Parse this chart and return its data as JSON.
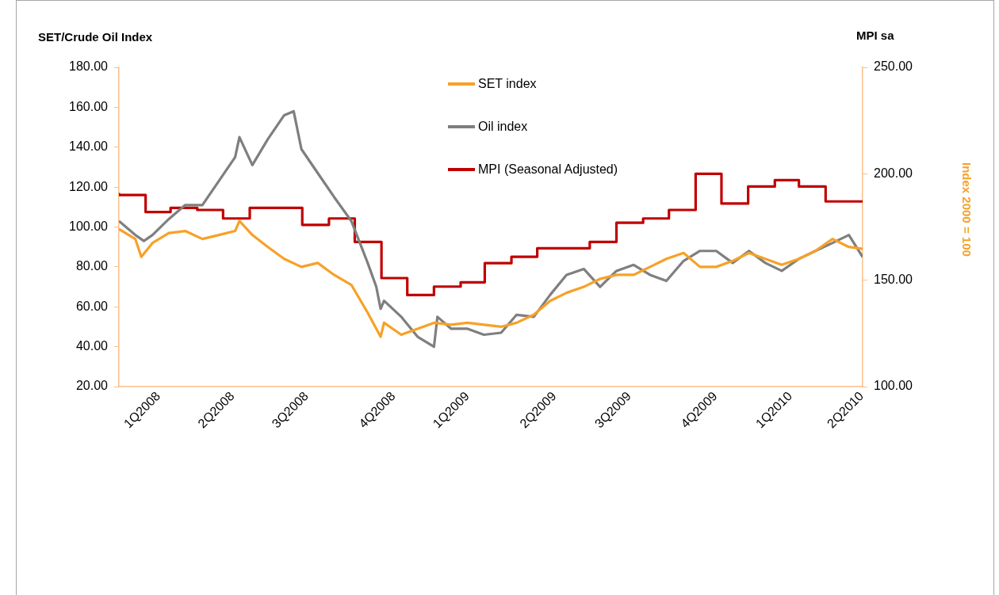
{
  "chart_data": {
    "type": "line",
    "ylabel": "SET/Crude  Oil Index",
    "y2label": "MPI sa",
    "annotations": [
      "Index 2000 = 100"
    ],
    "xlim": [
      "2008-01-01",
      "2010-05-14"
    ],
    "xticks": [
      {
        "value": "2008-02-16",
        "label": "1Q2008"
      },
      {
        "value": "2008-05-12",
        "label": "2Q2008"
      },
      {
        "value": "2008-08-06",
        "label": "3Q2008"
      },
      {
        "value": "2008-11-15",
        "label": "4Q2008"
      },
      {
        "value": "2009-02-09",
        "label": "1Q2009"
      },
      {
        "value": "2009-05-21",
        "label": "2Q2009"
      },
      {
        "value": "2009-08-16",
        "label": "3Q2009"
      },
      {
        "value": "2009-11-24",
        "label": "4Q2009"
      },
      {
        "value": "2010-02-19",
        "label": "1Q2010"
      },
      {
        "value": "2010-05-13",
        "label": "2Q2010"
      }
    ],
    "ylim": [
      20,
      180
    ],
    "yticks": [
      {
        "value": 20,
        "label": "20.00"
      },
      {
        "value": 40,
        "label": "40.00"
      },
      {
        "value": 60,
        "label": "60.00"
      },
      {
        "value": 80,
        "label": "80.00"
      },
      {
        "value": 100,
        "label": "100.00"
      },
      {
        "value": 120,
        "label": "120.00"
      },
      {
        "value": 140,
        "label": "140.00"
      },
      {
        "value": 160,
        "label": "160.00"
      },
      {
        "value": 180,
        "label": "180.00"
      }
    ],
    "y2lim": [
      100,
      250
    ],
    "y2ticks": [
      {
        "value": 100,
        "label": "100.00"
      },
      {
        "value": 150,
        "label": "150.00"
      },
      {
        "value": 200,
        "label": "200.00"
      },
      {
        "value": 250,
        "label": "250.00"
      }
    ],
    "grid": false,
    "legend": "top",
    "marker": "none",
    "line_style": "solid",
    "series": [
      {
        "name": "SET index",
        "color": "#f7a128",
        "x": [
          "2008-01-01",
          "2008-01-20",
          "2008-01-27",
          "2008-02-09",
          "2008-02-28",
          "2008-03-18",
          "2008-04-07",
          "2008-04-26",
          "2008-05-15",
          "2008-05-20",
          "2008-06-04",
          "2008-06-22",
          "2008-07-11",
          "2008-07-31",
          "2008-08-19",
          "2008-09-07",
          "2008-09-27",
          "2008-10-16",
          "2008-10-31",
          "2008-11-04",
          "2008-11-24",
          "2008-12-13",
          "2009-01-01",
          "2009-01-21",
          "2009-02-09",
          "2009-02-28",
          "2009-03-20",
          "2009-04-07",
          "2009-04-27",
          "2009-05-16",
          "2009-06-04",
          "2009-06-24",
          "2009-07-13",
          "2009-08-01",
          "2009-08-21",
          "2009-09-09",
          "2009-09-28",
          "2009-10-18",
          "2009-11-06",
          "2009-11-25",
          "2009-12-14",
          "2010-01-02",
          "2010-01-21",
          "2010-02-09",
          "2010-03-01",
          "2010-03-20",
          "2010-04-09",
          "2010-04-28",
          "2010-05-14"
        ],
        "values": [
          99,
          94,
          85,
          92,
          97,
          98,
          94,
          96,
          98,
          103,
          96,
          90,
          84,
          80,
          82,
          76,
          71,
          57,
          45,
          52,
          46,
          49,
          52,
          51,
          52,
          51,
          50,
          52,
          56,
          63,
          67,
          70,
          74,
          76,
          76,
          80,
          84,
          87,
          80,
          80,
          83,
          87,
          84,
          81,
          84,
          88,
          94,
          90,
          89
        ]
      },
      {
        "name": "Oil index",
        "color": "#7f7f7f",
        "x": [
          "2008-01-01",
          "2008-01-20",
          "2008-01-30",
          "2008-02-09",
          "2008-02-28",
          "2008-03-18",
          "2008-04-07",
          "2008-04-26",
          "2008-05-15",
          "2008-05-20",
          "2008-06-04",
          "2008-06-22",
          "2008-07-11",
          "2008-07-22",
          "2008-07-31",
          "2008-08-19",
          "2008-09-07",
          "2008-09-27",
          "2008-10-16",
          "2008-10-26",
          "2008-10-31",
          "2008-11-04",
          "2008-11-24",
          "2008-12-13",
          "2009-01-01",
          "2009-01-05",
          "2009-01-21",
          "2009-02-09",
          "2009-02-28",
          "2009-03-20",
          "2009-04-07",
          "2009-04-27",
          "2009-05-16",
          "2009-06-04",
          "2009-06-24",
          "2009-07-13",
          "2009-08-01",
          "2009-08-21",
          "2009-09-09",
          "2009-09-28",
          "2009-10-18",
          "2009-11-06",
          "2009-11-25",
          "2009-12-14",
          "2010-01-02",
          "2010-01-21",
          "2010-02-09",
          "2010-03-01",
          "2010-03-20",
          "2010-04-09",
          "2010-04-28",
          "2010-05-14"
        ],
        "values": [
          103,
          96,
          93,
          96,
          104,
          111,
          111,
          123,
          135,
          145,
          131,
          144,
          156,
          158,
          139,
          127,
          115,
          103,
          82,
          70,
          59,
          63,
          55,
          45,
          40,
          55,
          49,
          49,
          46,
          47,
          56,
          55,
          66,
          76,
          79,
          70,
          78,
          81,
          76,
          73,
          83,
          88,
          88,
          82,
          88,
          82,
          78,
          84,
          88,
          92,
          96,
          85
        ]
      },
      {
        "name": "MPI (Seasonal Adjusted)",
        "color": "#c00000",
        "type": "step",
        "axis": "y2",
        "x": [
          "2008-01-01",
          "2008-02-01",
          "2008-03-01",
          "2008-04-01",
          "2008-05-01",
          "2008-06-01",
          "2008-07-01",
          "2008-08-01",
          "2008-09-01",
          "2008-10-01",
          "2008-11-01",
          "2008-12-01",
          "2009-01-01",
          "2009-02-01",
          "2009-03-01",
          "2009-04-01",
          "2009-05-01",
          "2009-06-01",
          "2009-07-01",
          "2009-08-01",
          "2009-09-01",
          "2009-10-01",
          "2009-11-01",
          "2009-12-01",
          "2010-01-01",
          "2010-02-01",
          "2010-03-01",
          "2010-04-01",
          "2010-05-01",
          "2010-05-14"
        ],
        "values": [
          191,
          190,
          182,
          184,
          183,
          179,
          184,
          184,
          176,
          179,
          168,
          151,
          143,
          147,
          149,
          158,
          161,
          165,
          165,
          168,
          177,
          179,
          183,
          200,
          186,
          194,
          197,
          194,
          187,
          187
        ]
      }
    ]
  }
}
